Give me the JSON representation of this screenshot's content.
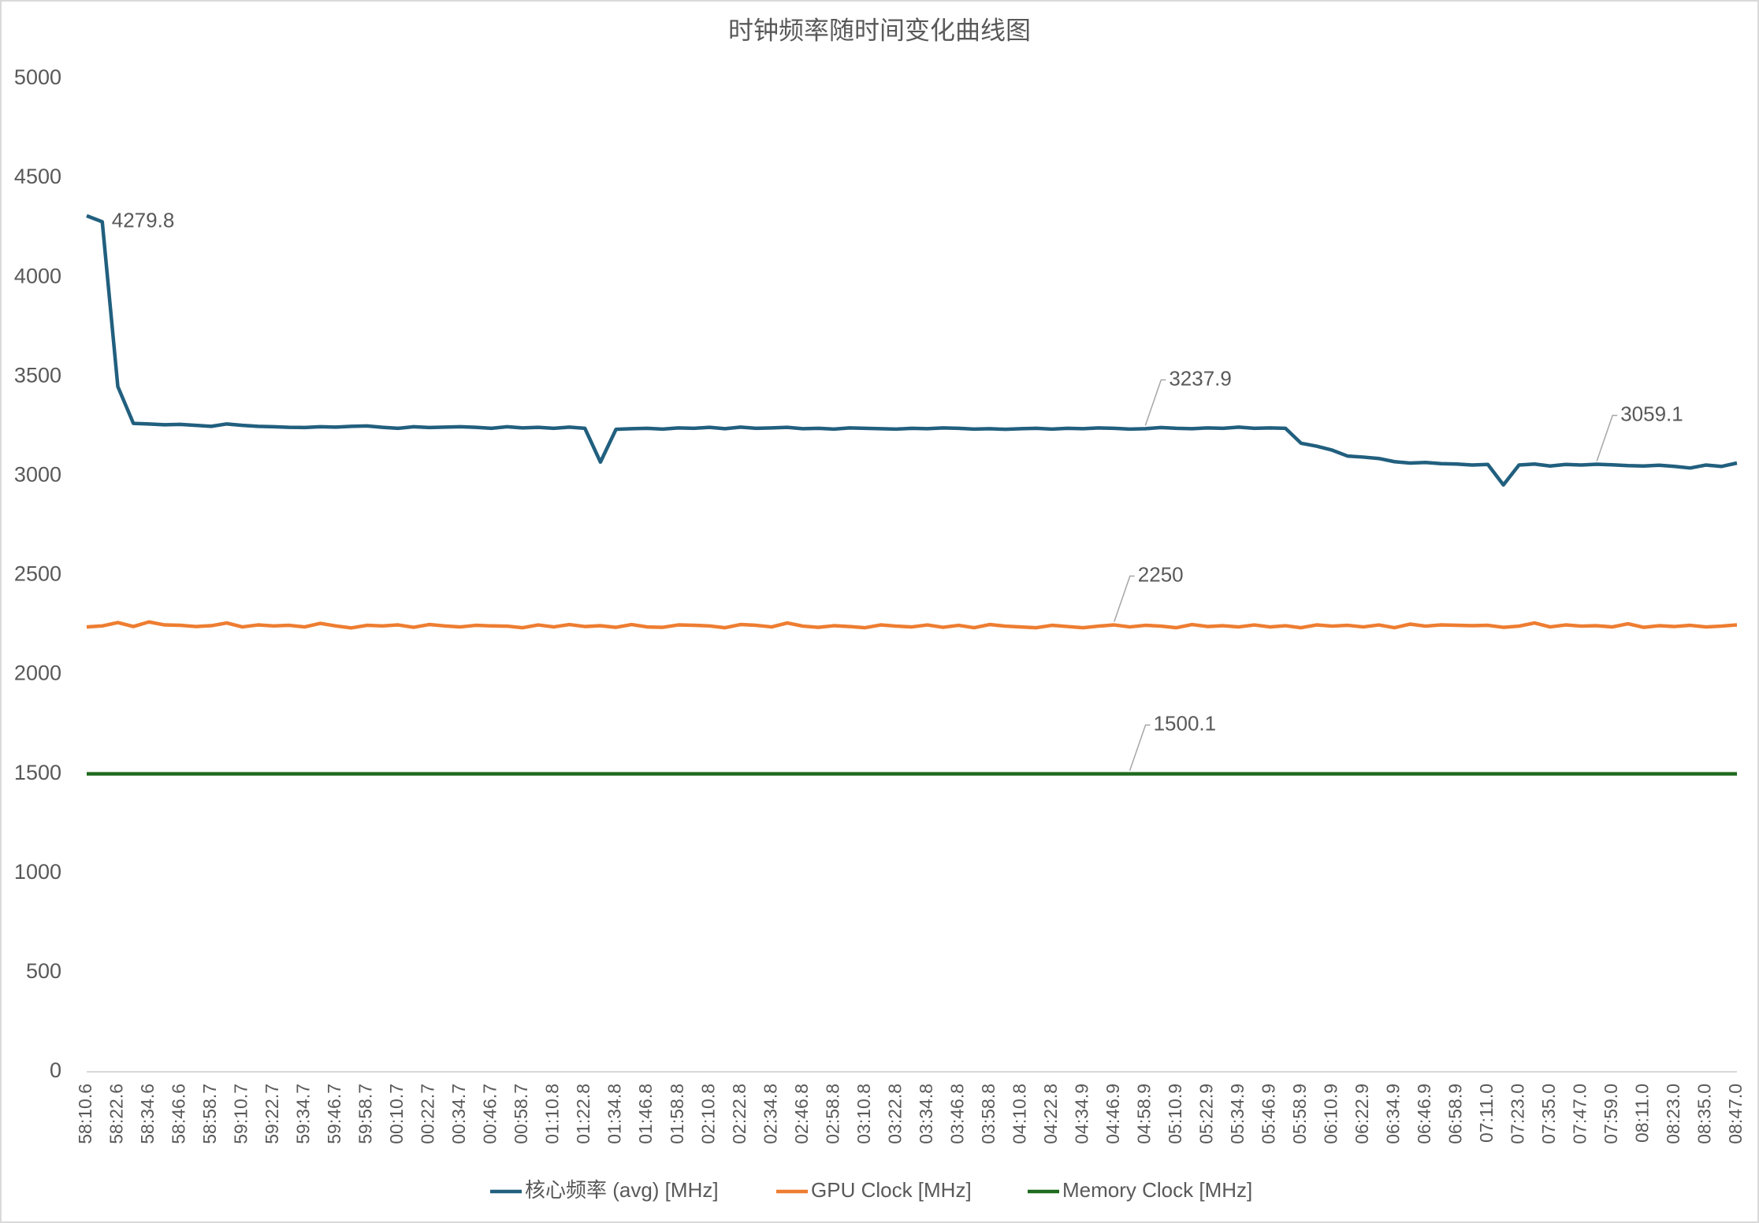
{
  "chart_data": {
    "type": "line",
    "title": "时钟频率随时间变化曲线图",
    "categories": [
      "58:10.6",
      null,
      "58:22.6",
      null,
      "58:34.6",
      null,
      "58:46.6",
      null,
      "58:58.7",
      null,
      "59:10.7",
      null,
      "59:22.7",
      null,
      "59:34.7",
      null,
      "59:46.7",
      null,
      "59:58.7",
      null,
      "00:10.7",
      null,
      "00:22.7",
      null,
      "00:34.7",
      null,
      "00:46.7",
      null,
      "00:58.7",
      null,
      "01:10.8",
      null,
      "01:22.8",
      null,
      "01:34.8",
      null,
      "01:46.8",
      null,
      "01:58.8",
      null,
      "02:10.8",
      null,
      "02:22.8",
      null,
      "02:34.8",
      null,
      "02:46.8",
      null,
      "02:58.8",
      null,
      "03:10.8",
      null,
      "03:22.8",
      null,
      "03:34.8",
      null,
      "03:46.8",
      null,
      "03:58.8",
      null,
      "04:10.8",
      null,
      "04:22.8",
      null,
      "04:34.9",
      null,
      "04:46.9",
      null,
      "04:58.9",
      null,
      "05:10.9",
      null,
      "05:22.9",
      null,
      "05:34.9",
      null,
      "05:46.9",
      null,
      "05:58.9",
      null,
      "06:10.9",
      null,
      "06:22.9",
      null,
      "06:34.9",
      null,
      "06:46.9",
      null,
      "06:58.9",
      null,
      "07:11.0",
      null,
      "07:23.0",
      null,
      "07:35.0",
      null,
      "07:47.0",
      null,
      "07:59.0",
      null,
      "08:11.0",
      null,
      "08:23.0",
      null,
      "08:35.0",
      null,
      "08:47.0"
    ],
    "series": [
      {
        "name": "核心频率 (avg) [MHz]",
        "color": "#215f7e",
        "label_points": [
          1,
          68,
          97
        ],
        "values": [
          4310,
          4279.8,
          3450,
          3265,
          3262,
          3258,
          3260,
          3255,
          3250,
          3262,
          3255,
          3250,
          3248,
          3245,
          3244,
          3248,
          3246,
          3250,
          3252,
          3245,
          3240,
          3248,
          3244,
          3246,
          3248,
          3245,
          3240,
          3248,
          3242,
          3245,
          3240,
          3246,
          3240,
          3070,
          3235,
          3238,
          3240,
          3236,
          3242,
          3240,
          3245,
          3238,
          3246,
          3240,
          3242,
          3245,
          3238,
          3240,
          3236,
          3242,
          3240,
          3238,
          3236,
          3240,
          3238,
          3242,
          3240,
          3236,
          3238,
          3235,
          3238,
          3240,
          3236,
          3240,
          3238,
          3242,
          3240,
          3236,
          3237.9,
          3244,
          3240,
          3238,
          3242,
          3240,
          3246,
          3240,
          3242,
          3240,
          3165,
          3150,
          3130,
          3100,
          3095,
          3088,
          3072,
          3065,
          3068,
          3062,
          3060,
          3055,
          3058,
          2955,
          3055,
          3060,
          3050,
          3058,
          3055,
          3059.1,
          3056,
          3052,
          3050,
          3054,
          3048,
          3040,
          3055,
          3048,
          3065
        ]
      },
      {
        "name": "GPU Clock [MHz]",
        "color": "#ee7d31",
        "label_points": [
          66
        ],
        "values": [
          2240,
          2245,
          2262,
          2242,
          2265,
          2250,
          2248,
          2242,
          2246,
          2260,
          2240,
          2250,
          2245,
          2248,
          2240,
          2258,
          2245,
          2235,
          2248,
          2245,
          2250,
          2238,
          2252,
          2245,
          2240,
          2248,
          2245,
          2244,
          2236,
          2250,
          2240,
          2252,
          2242,
          2246,
          2238,
          2252,
          2240,
          2238,
          2250,
          2248,
          2245,
          2236,
          2252,
          2248,
          2240,
          2260,
          2244,
          2238,
          2246,
          2242,
          2236,
          2250,
          2244,
          2240,
          2250,
          2238,
          2248,
          2236,
          2252,
          2244,
          2240,
          2236,
          2248,
          2242,
          2236,
          2244,
          2250,
          2240,
          2248,
          2244,
          2236,
          2252,
          2242,
          2246,
          2240,
          2250,
          2240,
          2246,
          2236,
          2250,
          2244,
          2248,
          2240,
          2250,
          2236,
          2254,
          2244,
          2250,
          2248,
          2246,
          2248,
          2238,
          2244,
          2260,
          2240,
          2250,
          2244,
          2246,
          2240,
          2256,
          2238,
          2246,
          2242,
          2248,
          2240,
          2244,
          2250
        ]
      },
      {
        "name": "Memory Clock [MHz]",
        "color": "#1e6b1e",
        "label_points": [
          67
        ],
        "values": [
          1500.1,
          1500.1,
          1500.1,
          1500.1,
          1500.1,
          1500.1,
          1500.1,
          1500.1,
          1500.1,
          1500.1,
          1500.1,
          1500.1,
          1500.1,
          1500.1,
          1500.1,
          1500.1,
          1500.1,
          1500.1,
          1500.1,
          1500.1,
          1500.1,
          1500.1,
          1500.1,
          1500.1,
          1500.1,
          1500.1,
          1500.1,
          1500.1,
          1500.1,
          1500.1,
          1500.1,
          1500.1,
          1500.1,
          1500.1,
          1500.1,
          1500.1,
          1500.1,
          1500.1,
          1500.1,
          1500.1,
          1500.1,
          1500.1,
          1500.1,
          1500.1,
          1500.1,
          1500.1,
          1500.1,
          1500.1,
          1500.1,
          1500.1,
          1500.1,
          1500.1,
          1500.1,
          1500.1,
          1500.1,
          1500.1,
          1500.1,
          1500.1,
          1500.1,
          1500.1,
          1500.1,
          1500.1,
          1500.1,
          1500.1,
          1500.1,
          1500.1,
          1500.1,
          1500.1,
          1500.1,
          1500.1,
          1500.1,
          1500.1,
          1500.1,
          1500.1,
          1500.1,
          1500.1,
          1500.1,
          1500.1,
          1500.1,
          1500.1,
          1500.1,
          1500.1,
          1500.1,
          1500.1,
          1500.1,
          1500.1,
          1500.1,
          1500.1,
          1500.1,
          1500.1,
          1500.1,
          1500.1,
          1500.1,
          1500.1,
          1500.1,
          1500.1,
          1500.1,
          1500.1,
          1500.1,
          1500.1,
          1500.1,
          1500.1,
          1500.1,
          1500.1,
          1500.1,
          1500.1,
          1500.1
        ]
      }
    ],
    "ylim": [
      0,
      5000
    ],
    "yticks": [
      0,
      500,
      1000,
      1500,
      2000,
      2500,
      3000,
      3500,
      4000,
      4500,
      5000
    ],
    "grid": false
  }
}
